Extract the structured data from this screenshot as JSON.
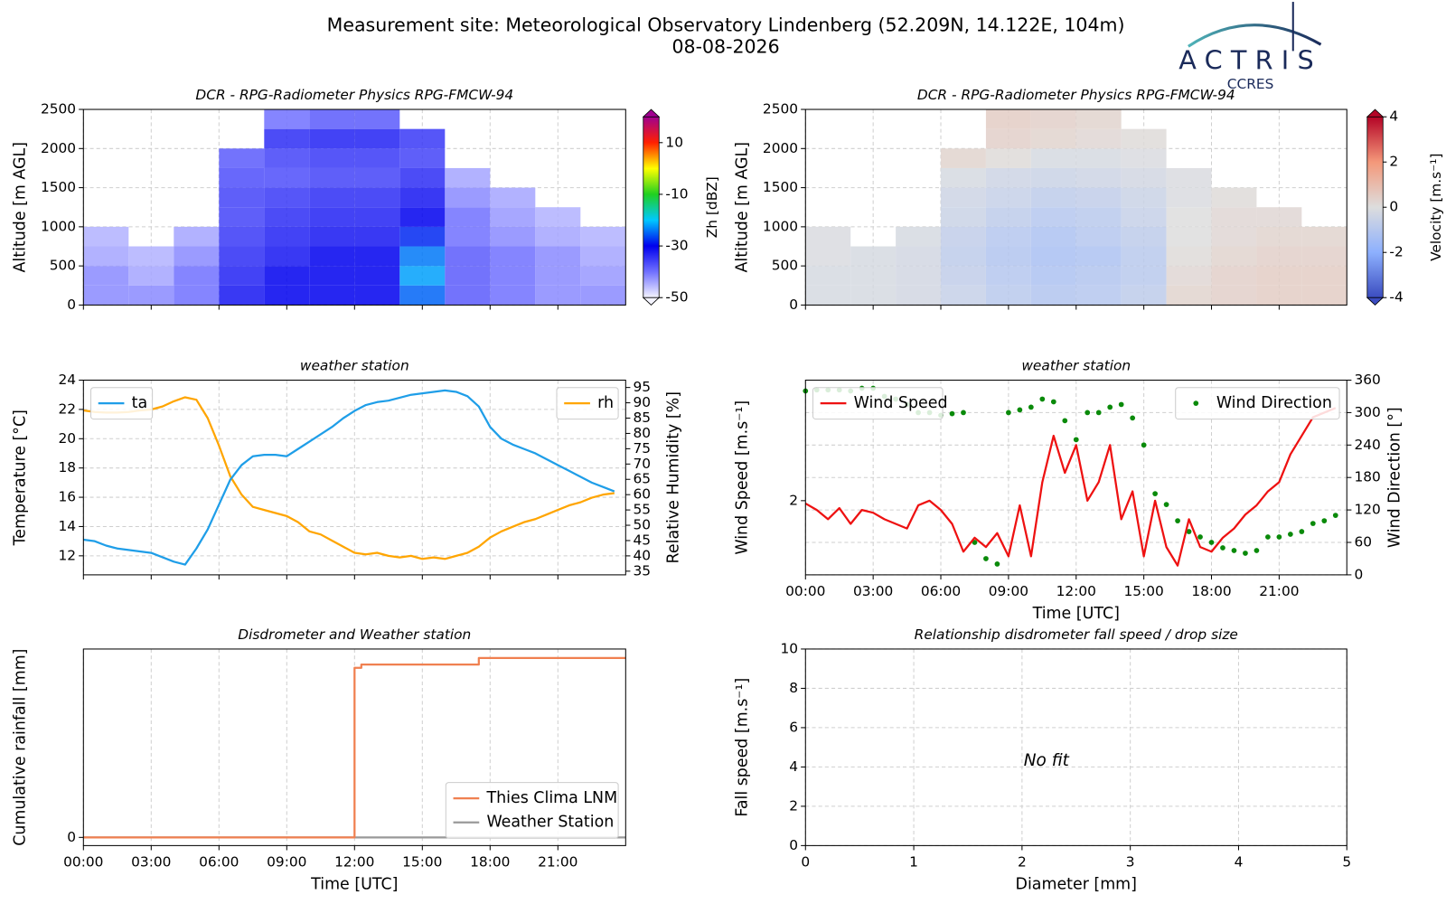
{
  "header": {
    "title": "Measurement site: Meteorological Observatory Lindenberg (52.209N, 14.122E, 104m)",
    "date": "08-08-2026",
    "logo": "ACTRIS",
    "logo_sub": "CCRES"
  },
  "chart_data": [
    {
      "type": "heatmap",
      "title": "DCR - RPG-Radiometer Physics RPG-FMCW-94",
      "ylabel": "Altitude [m AGL]",
      "clabel": "Zh [dBZ]",
      "xlim": [
        0,
        24
      ],
      "xticks": [
        0,
        3,
        6,
        9,
        12,
        15,
        18,
        21
      ],
      "ylim": [
        0,
        2500
      ],
      "yticks": [
        0,
        500,
        1000,
        1500,
        2000,
        2500
      ],
      "grid": [
        "x",
        "y"
      ],
      "x_bins": [
        0,
        2,
        4,
        6,
        8,
        10,
        12,
        14,
        16,
        18,
        20,
        22,
        24
      ],
      "y_bins": [
        0,
        250,
        500,
        750,
        1000,
        1250,
        1500,
        1750,
        2000,
        2250,
        2500
      ],
      "z": [
        [
          -42,
          -42,
          -40,
          -32,
          -30,
          -30,
          -30,
          -25,
          -38,
          -40,
          -42,
          -42
        ],
        [
          -42,
          -44,
          -40,
          -33,
          -30,
          -30,
          -30,
          -22,
          -38,
          -40,
          -42,
          -43
        ],
        [
          -44,
          -45,
          -42,
          -34,
          -32,
          -30,
          -30,
          -24,
          -38,
          -40,
          -42,
          -44
        ],
        [
          -45,
          null,
          -44,
          -35,
          -33,
          -32,
          -32,
          -28,
          -40,
          -42,
          -44,
          -45
        ],
        [
          null,
          null,
          null,
          -36,
          -34,
          -33,
          -33,
          -30,
          -40,
          -43,
          -45,
          null
        ],
        [
          null,
          null,
          null,
          -36,
          -35,
          -34,
          -34,
          -32,
          -42,
          -44,
          null,
          null
        ],
        [
          null,
          null,
          null,
          -37,
          -37,
          -36,
          -36,
          -34,
          -44,
          null,
          null,
          null
        ],
        [
          null,
          null,
          null,
          -38,
          -36,
          -35,
          -35,
          -36,
          null,
          null,
          null,
          null
        ],
        [
          null,
          null,
          null,
          null,
          -34,
          -33,
          -33,
          -35,
          null,
          null,
          null,
          null
        ],
        [
          null,
          null,
          null,
          null,
          -40,
          -38,
          -38,
          null,
          null,
          null,
          null,
          null
        ]
      ],
      "clim": [
        -50,
        20
      ],
      "cticks": [
        -50,
        -30,
        -10,
        10
      ],
      "colormap": [
        "#f4f4ff",
        "#7070ff",
        "#0000ee",
        "#00c8ff",
        "#20d020",
        "#ffff00",
        "#ff2000",
        "#a00090"
      ]
    },
    {
      "type": "heatmap",
      "title": "DCR - RPG-Radiometer Physics RPG-FMCW-94",
      "ylabel": "Altitude [m AGL]",
      "clabel": "Velocity [m.s⁻¹]",
      "xlim": [
        0,
        24
      ],
      "xticks": [
        0,
        3,
        6,
        9,
        12,
        15,
        18,
        21
      ],
      "ylim": [
        0,
        2500
      ],
      "yticks": [
        0,
        500,
        1000,
        1500,
        2000,
        2500
      ],
      "grid": [
        "x",
        "y"
      ],
      "x_bins": [
        0,
        2,
        4,
        6,
        8,
        10,
        12,
        14,
        16,
        18,
        20,
        22,
        24
      ],
      "y_bins": [
        0,
        250,
        500,
        750,
        1000,
        1250,
        1500,
        1750,
        2000,
        2250,
        2500
      ],
      "z": [
        [
          -0.2,
          -0.2,
          -0.3,
          -0.6,
          -0.9,
          -1.1,
          -1.0,
          -0.8,
          0.3,
          0.4,
          0.5,
          0.5
        ],
        [
          -0.2,
          -0.2,
          -0.3,
          -0.7,
          -1.0,
          -1.2,
          -1.1,
          -0.9,
          0.2,
          0.4,
          0.5,
          0.5
        ],
        [
          -0.1,
          -0.2,
          -0.3,
          -0.8,
          -1.1,
          -1.3,
          -1.2,
          -0.9,
          0.1,
          0.3,
          0.4,
          0.4
        ],
        [
          -0.1,
          null,
          -0.2,
          -0.7,
          -1.0,
          -1.2,
          -1.0,
          -0.8,
          0.0,
          0.2,
          0.3,
          0.3
        ],
        [
          null,
          null,
          null,
          -0.5,
          -0.8,
          -1.0,
          -0.9,
          -0.6,
          0.0,
          0.2,
          0.2,
          null
        ],
        [
          null,
          null,
          null,
          -0.4,
          -0.6,
          -0.8,
          -0.7,
          -0.5,
          -0.1,
          0.1,
          null,
          null
        ],
        [
          null,
          null,
          null,
          -0.2,
          -0.4,
          -0.5,
          -0.4,
          -0.3,
          -0.1,
          null,
          null,
          null
        ],
        [
          null,
          null,
          null,
          0.3,
          0.1,
          -0.2,
          -0.2,
          -0.1,
          null,
          null,
          null,
          null
        ],
        [
          null,
          null,
          null,
          null,
          0.4,
          0.3,
          0.2,
          0.1,
          null,
          null,
          null,
          null
        ],
        [
          null,
          null,
          null,
          null,
          0.5,
          0.4,
          0.3,
          null,
          null,
          null,
          null,
          null
        ]
      ],
      "clim": [
        -4,
        4
      ],
      "cticks": [
        -4,
        -2,
        0,
        2,
        4
      ],
      "colormap": [
        "#3b4cc0",
        "#8db0fe",
        "#dddddd",
        "#f4987a",
        "#b40426"
      ]
    },
    {
      "type": "line",
      "title": "weather station",
      "ylabel": "Temperature [°C]",
      "y2label": "Relative Humidity [%]",
      "xlim": [
        0,
        24
      ],
      "xticks": [
        0,
        3,
        6,
        9,
        12,
        15,
        18,
        21
      ],
      "ylim": [
        10.7,
        24
      ],
      "yticks": [
        12,
        14,
        16,
        18,
        20,
        22,
        24
      ],
      "y2lim": [
        33.8,
        97.4
      ],
      "y2ticks": [
        35,
        40,
        45,
        50,
        55,
        60,
        65,
        70,
        75,
        80,
        85,
        90,
        95
      ],
      "grid": [
        "x",
        "y"
      ],
      "x": [
        0,
        0.5,
        1,
        1.5,
        2,
        2.5,
        3,
        3.5,
        4,
        4.5,
        5,
        5.5,
        6,
        6.5,
        7,
        7.5,
        8,
        8.5,
        9,
        9.5,
        10,
        10.5,
        11,
        11.5,
        12,
        12.5,
        13,
        13.5,
        14,
        14.5,
        15,
        15.5,
        16,
        16.5,
        17,
        17.5,
        18,
        18.5,
        19,
        19.5,
        20,
        20.5,
        21,
        21.5,
        22,
        22.5,
        23,
        23.5
      ],
      "series": [
        {
          "name": "ta",
          "color": "#1f9ee8",
          "legend": "upper left",
          "values": [
            13.1,
            13.0,
            12.7,
            12.5,
            12.4,
            12.3,
            12.2,
            11.9,
            11.6,
            11.4,
            12.5,
            13.8,
            15.5,
            17.2,
            18.2,
            18.8,
            18.9,
            18.9,
            18.8,
            19.3,
            19.8,
            20.3,
            20.8,
            21.4,
            21.9,
            22.3,
            22.5,
            22.6,
            22.8,
            23.0,
            23.1,
            23.2,
            23.3,
            23.2,
            22.9,
            22.2,
            20.8,
            20.0,
            19.6,
            19.3,
            19.0,
            18.6,
            18.2,
            17.8,
            17.4,
            17.0,
            16.7,
            16.4
          ]
        },
        {
          "name": "rh",
          "color": "#ffa500",
          "axis": "y2",
          "legend": "upper right",
          "values": [
            87.5,
            87,
            86.8,
            86.8,
            87,
            87.5,
            87.8,
            88.8,
            90.5,
            91.8,
            91,
            85,
            76,
            66,
            60,
            56,
            55,
            54,
            53,
            51,
            48,
            47,
            45,
            43,
            41,
            40.5,
            41,
            40,
            39.5,
            40,
            39,
            39.5,
            39,
            40,
            41,
            43,
            46,
            48,
            49.5,
            51,
            52,
            53.5,
            55,
            56.5,
            57.5,
            59,
            60,
            60.5
          ]
        }
      ]
    },
    {
      "type": "line",
      "title": "weather station",
      "ylabel": "Wind Speed [m.s⁻¹]",
      "y2label": "Wind Direction [°]",
      "xlabel": "Time [UTC]",
      "xlim": [
        0,
        24
      ],
      "xticks": [
        {
          "value": 0,
          "label": "00:00"
        },
        {
          "value": 3,
          "label": "03:00"
        },
        {
          "value": 6,
          "label": "06:00"
        },
        {
          "value": 9,
          "label": "09:00"
        },
        {
          "value": 12,
          "label": "12:00"
        },
        {
          "value": 15,
          "label": "15:00"
        },
        {
          "value": 18,
          "label": "18:00"
        },
        {
          "value": 21,
          "label": "21:00"
        }
      ],
      "ylim": [
        1.2,
        3.3
      ],
      "yticks": [
        2
      ],
      "y2lim": [
        0,
        360
      ],
      "y2ticks": [
        0,
        60,
        120,
        180,
        240,
        300,
        360
      ],
      "grid": [
        "x",
        "y2"
      ],
      "x": [
        0,
        0.5,
        1,
        1.5,
        2,
        2.5,
        3,
        3.5,
        4,
        4.5,
        5,
        5.5,
        6,
        6.5,
        7,
        7.5,
        8,
        8.5,
        9,
        9.5,
        10,
        10.5,
        11,
        11.5,
        12,
        12.5,
        13,
        13.5,
        14,
        14.5,
        15,
        15.5,
        16,
        16.5,
        17,
        17.5,
        18,
        18.5,
        19,
        19.5,
        20,
        20.5,
        21,
        21.5,
        22,
        22.5,
        23,
        23.5
      ],
      "series": [
        {
          "name": "Wind Speed",
          "color": "#ee1111",
          "legend": "upper left",
          "values": [
            1.97,
            1.9,
            1.8,
            1.92,
            1.75,
            1.9,
            1.87,
            1.8,
            1.75,
            1.7,
            1.95,
            2.0,
            1.9,
            1.75,
            1.45,
            1.6,
            1.5,
            1.65,
            1.4,
            1.95,
            1.4,
            2.2,
            2.7,
            2.3,
            2.6,
            2.0,
            2.2,
            2.6,
            1.8,
            2.1,
            1.4,
            2.0,
            1.5,
            1.3,
            1.8,
            1.5,
            1.45,
            1.6,
            1.7,
            1.85,
            1.95,
            2.1,
            2.2,
            2.5,
            2.7,
            2.9,
            2.95,
            3.0
          ]
        },
        {
          "name": "Wind Direction",
          "color": "#0a8a0a",
          "axis": "y2",
          "type": "scatter",
          "legend": "upper right",
          "values": [
            340,
            342,
            342,
            342,
            340,
            345,
            345,
            330,
            325,
            315,
            300,
            300,
            295,
            298,
            300,
            60,
            30,
            20,
            300,
            305,
            310,
            325,
            320,
            285,
            250,
            300,
            300,
            310,
            315,
            290,
            240,
            150,
            130,
            100,
            80,
            70,
            60,
            50,
            45,
            40,
            45,
            70,
            70,
            75,
            80,
            95,
            100,
            110
          ]
        }
      ]
    },
    {
      "type": "line",
      "title": "Disdrometer and Weather station",
      "ylabel": "Cumulative rainfall [mm]",
      "xlabel": "Time [UTC]",
      "xlim": [
        0,
        24
      ],
      "xticks": [
        {
          "value": 0,
          "label": "00:00"
        },
        {
          "value": 3,
          "label": "03:00"
        },
        {
          "value": 6,
          "label": "06:00"
        },
        {
          "value": 9,
          "label": "09:00"
        },
        {
          "value": 12,
          "label": "12:00"
        },
        {
          "value": 15,
          "label": "15:00"
        },
        {
          "value": 18,
          "label": "18:00"
        },
        {
          "value": 21,
          "label": "21:00"
        }
      ],
      "ylim": [
        -0.01,
        0.23
      ],
      "yticks": [
        0
      ],
      "grid": [
        "x",
        "y"
      ],
      "step": "post",
      "series": [
        {
          "name": "Thies Clima LNM",
          "color": "#f08050",
          "legend": "lower right",
          "x": [
            0,
            12,
            12.3,
            17.5,
            24
          ],
          "values": [
            0,
            0.207,
            0.211,
            0.219,
            0.219
          ]
        },
        {
          "name": "Weather Station",
          "color": "#999999",
          "legend": "lower right",
          "x": [
            0,
            24
          ],
          "values": [
            0,
            0
          ]
        }
      ]
    },
    {
      "type": "scatter",
      "title": "Relationship disdrometer fall speed / drop size",
      "ylabel": "Fall speed [m.s⁻¹]",
      "xlabel": "Diameter [mm]",
      "xlim": [
        0,
        5
      ],
      "xticks": [
        0,
        1,
        2,
        3,
        4,
        5
      ],
      "ylim": [
        0,
        10
      ],
      "yticks": [
        0,
        2,
        4,
        6,
        8,
        10
      ],
      "grid": [
        "x",
        "y"
      ],
      "annotation": "No fit"
    }
  ]
}
